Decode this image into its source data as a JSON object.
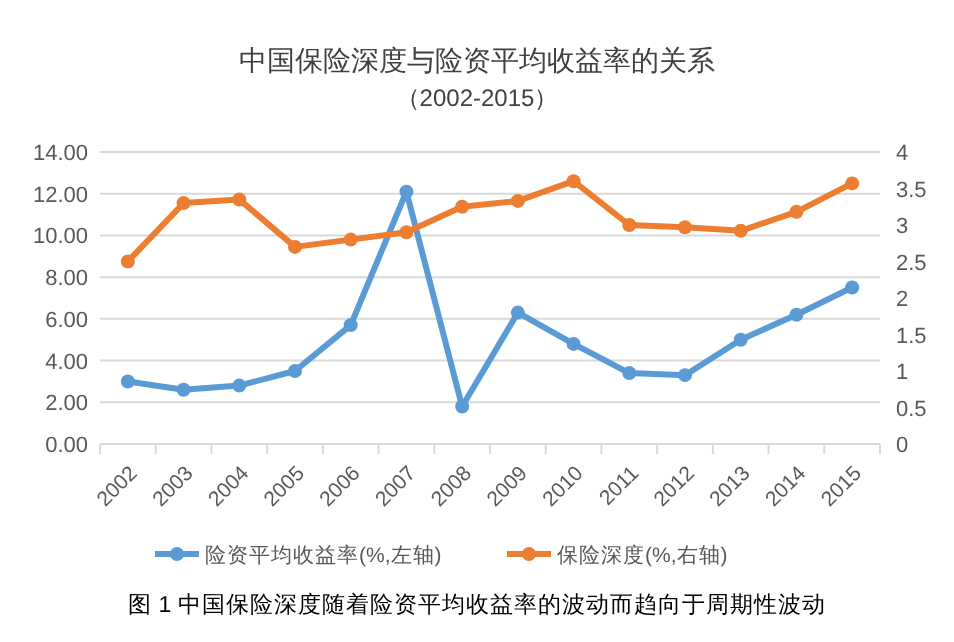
{
  "chart_data": {
    "type": "line",
    "title": "中国保险深度与险资平均收益率的关系",
    "subtitle": "（2002-2015）",
    "categories": [
      "2002",
      "2003",
      "2004",
      "2005",
      "2006",
      "2007",
      "2008",
      "2009",
      "2010",
      "2011",
      "2012",
      "2013",
      "2014",
      "2015"
    ],
    "series": [
      {
        "name": "险资平均收益率(%,左轴)",
        "color": "#5b9bd5",
        "values": [
          3.0,
          2.6,
          2.8,
          3.5,
          5.7,
          12.1,
          1.8,
          6.3,
          4.8,
          3.4,
          3.3,
          5.0,
          6.2,
          7.5
        ]
      },
      {
        "name": "保险深度(%,右轴)",
        "color": "#ed7d31",
        "axis": "y2",
        "values": [
          2.5,
          3.3,
          3.35,
          2.7,
          2.8,
          2.9,
          3.25,
          3.33,
          3.6,
          3.0,
          2.97,
          2.92,
          3.18,
          3.57
        ]
      }
    ],
    "ylim": [
      0,
      14
    ],
    "yticks": [
      {
        "value": 0,
        "label": "0.00"
      },
      {
        "value": 2,
        "label": "2.00"
      },
      {
        "value": 4,
        "label": "4.00"
      },
      {
        "value": 6,
        "label": "6.00"
      },
      {
        "value": 8,
        "label": "8.00"
      },
      {
        "value": 10,
        "label": "10.00"
      },
      {
        "value": 12,
        "label": "12.00"
      },
      {
        "value": 14,
        "label": "14.00"
      }
    ],
    "y2lim": [
      0,
      4
    ],
    "y2ticks": [
      0,
      0.5,
      1,
      1.5,
      2,
      2.5,
      3,
      3.5,
      4
    ],
    "grid": "y",
    "legend": "bottom",
    "marker": "circle",
    "line_style": "solid",
    "annotations": [
      "图 1  中国保险深度随着险资平均收益率的波动而趋向于周期性波动"
    ]
  }
}
